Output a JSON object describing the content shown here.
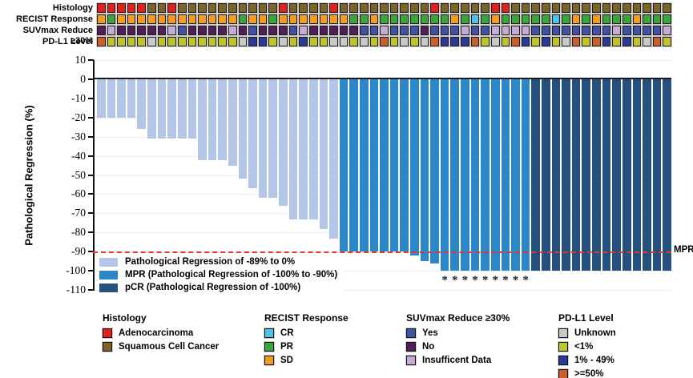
{
  "chart_data": {
    "type": "bar",
    "subtype": "waterfall-oncoplot",
    "title": "",
    "ylabel": "Pathological Regression (%)",
    "ylim": [
      -110,
      10
    ],
    "yticks": [
      10,
      0,
      -10,
      -20,
      -30,
      -40,
      -50,
      -60,
      -70,
      -80,
      -90,
      -100,
      -110
    ],
    "grid": "horizontal-light",
    "n_patients": 57,
    "bar_values": [
      -20,
      -20,
      -20,
      -20,
      -26,
      -31,
      -31,
      -31,
      -31,
      -31,
      -42,
      -42,
      -42,
      -45,
      -52,
      -57,
      -62,
      -62,
      -66,
      -73,
      -73,
      -73,
      -78,
      -83,
      -90,
      -90,
      -90,
      -90,
      -90,
      -90,
      -90,
      -92,
      -95,
      -96,
      -100,
      -100,
      -100,
      -100,
      -100,
      -100,
      -100,
      -100,
      -100,
      -100,
      -100,
      -100,
      -100,
      -100,
      -100,
      -100,
      -100,
      -100,
      -100,
      -100,
      -100,
      -100,
      -100
    ],
    "group_ranges": [
      {
        "group": "light",
        "from": 1,
        "to": 24
      },
      {
        "group": "mpr",
        "from": 25,
        "to": 43
      },
      {
        "group": "pcr",
        "from": 44,
        "to": 57
      }
    ],
    "bar_colors": {
      "light": "#b3c6e7",
      "mpr": "#2c87c8",
      "pcr": "#26507e"
    },
    "asterisk_columns": [
      35,
      36,
      37,
      38,
      39,
      40,
      41,
      42,
      43
    ],
    "asterisk_symbol": "*",
    "mpr_line": {
      "value": -90,
      "label": "MPR",
      "color": "#e8342a",
      "style": "dashed"
    },
    "plot_legend": [
      {
        "key": "light",
        "label": "Pathological Regression of -89% to 0%"
      },
      {
        "key": "mpr",
        "label": "MPR (Pathological Regression of -100% to -90%)"
      },
      {
        "key": "pcr",
        "label": "pCR (Pathological Regression of -100%)"
      }
    ],
    "annotations": {
      "palette": {
        "adeno": "#e2201c",
        "squam": "#7c6529",
        "sd": "#f59b20",
        "pr": "#3ba63b",
        "cr": "#4fc2e8",
        "yes": "#4152a5",
        "no": "#521e57",
        "insuf": "#c5abd6",
        "unk": "#c9c9c9",
        "lt1": "#bfc428",
        "p1_49": "#2b3a96",
        "ge50": "#cb5f2b"
      },
      "rows": [
        {
          "label": "Histology",
          "codes": [
            "adeno",
            "adeno",
            "adeno",
            "adeno",
            "adeno",
            "squam",
            "squam",
            "adeno",
            "squam",
            "squam",
            "squam",
            "squam",
            "squam",
            "squam",
            "squam",
            "squam",
            "squam",
            "squam",
            "adeno",
            "squam",
            "squam",
            "squam",
            "squam",
            "adeno",
            "squam",
            "squam",
            "squam",
            "squam",
            "squam",
            "squam",
            "squam",
            "squam",
            "squam",
            "adeno",
            "squam",
            "squam",
            "squam",
            "squam",
            "squam",
            "adeno",
            "adeno",
            "squam",
            "squam",
            "squam",
            "squam",
            "squam",
            "squam",
            "squam",
            "squam",
            "squam",
            "squam",
            "squam",
            "squam",
            "squam",
            "squam",
            "squam",
            "squam"
          ]
        },
        {
          "label": "RECIST Response",
          "codes": [
            "sd",
            "pr",
            "sd",
            "sd",
            "sd",
            "sd",
            "sd",
            "sd",
            "sd",
            "sd",
            "sd",
            "sd",
            "sd",
            "sd",
            "pr",
            "sd",
            "sd",
            "pr",
            "sd",
            "sd",
            "sd",
            "sd",
            "sd",
            "sd",
            "sd",
            "pr",
            "pr",
            "sd",
            "pr",
            "pr",
            "pr",
            "pr",
            "pr",
            "pr",
            "pr",
            "sd",
            "pr",
            "cr",
            "pr",
            "sd",
            "pr",
            "pr",
            "pr",
            "pr",
            "pr",
            "cr",
            "pr",
            "sd",
            "pr",
            "sd",
            "pr",
            "pr",
            "pr",
            "sd",
            "pr",
            "pr",
            "pr"
          ]
        },
        {
          "label": "SUVmax Reduce ≥30%",
          "codes": [
            "no",
            "insuf",
            "no",
            "no",
            "no",
            "no",
            "no",
            "insuf",
            "yes",
            "no",
            "no",
            "no",
            "no",
            "insuf",
            "no",
            "yes",
            "no",
            "no",
            "no",
            "yes",
            "insuf",
            "no",
            "no",
            "no",
            "no",
            "no",
            "yes",
            "yes",
            "insuf",
            "yes",
            "yes",
            "yes",
            "no",
            "yes",
            "yes",
            "yes",
            "insuf",
            "yes",
            "yes",
            "insuf",
            "insuf",
            "insuf",
            "insuf",
            "yes",
            "yes",
            "yes",
            "yes",
            "yes",
            "yes",
            "yes",
            "yes",
            "insuf",
            "yes",
            "yes",
            "yes",
            "yes",
            "insuf"
          ]
        },
        {
          "label": "PD-L1 Level",
          "codes": [
            "ge50",
            "lt1",
            "lt1",
            "lt1",
            "lt1",
            "unk",
            "lt1",
            "lt1",
            "lt1",
            "lt1",
            "lt1",
            "lt1",
            "lt1",
            "lt1",
            "unk",
            "p1_49",
            "p1_49",
            "lt1",
            "unk",
            "lt1",
            "p1_49",
            "lt1",
            "lt1",
            "unk",
            "unk",
            "lt1",
            "unk",
            "lt1",
            "ge50",
            "lt1",
            "unk",
            "lt1",
            "unk",
            "ge50",
            "p1_49",
            "p1_49",
            "p1_49",
            "ge50",
            "lt1",
            "unk",
            "lt1",
            "ge50",
            "p1_49",
            "lt1",
            "p1_49",
            "lt1",
            "unk",
            "ge50",
            "lt1",
            "ge50",
            "p1_49",
            "lt1",
            "p1_49",
            "lt1",
            "unk",
            "ge50",
            "lt1"
          ]
        }
      ]
    },
    "category_legends": [
      {
        "title": "Histology",
        "items": [
          {
            "key": "adeno",
            "label": "Adenocarcinoma"
          },
          {
            "key": "squam",
            "label": "Squamous Cell Cancer"
          }
        ]
      },
      {
        "title": "RECIST Response",
        "items": [
          {
            "key": "cr",
            "label": "CR"
          },
          {
            "key": "pr",
            "label": "PR"
          },
          {
            "key": "sd",
            "label": "SD"
          }
        ]
      },
      {
        "title": "SUVmax Reduce ≥30%",
        "items": [
          {
            "key": "yes",
            "label": "Yes"
          },
          {
            "key": "no",
            "label": "No"
          },
          {
            "key": "insuf",
            "label": "Insufficent Data"
          }
        ]
      },
      {
        "title": "PD-L1 Level",
        "items": [
          {
            "key": "unk",
            "label": "Unknown"
          },
          {
            "key": "lt1",
            "label": "<1%"
          },
          {
            "key": "p1_49",
            "label": "1% - 49%"
          },
          {
            "key": "ge50",
            "label": ">=50%"
          }
        ]
      }
    ]
  }
}
